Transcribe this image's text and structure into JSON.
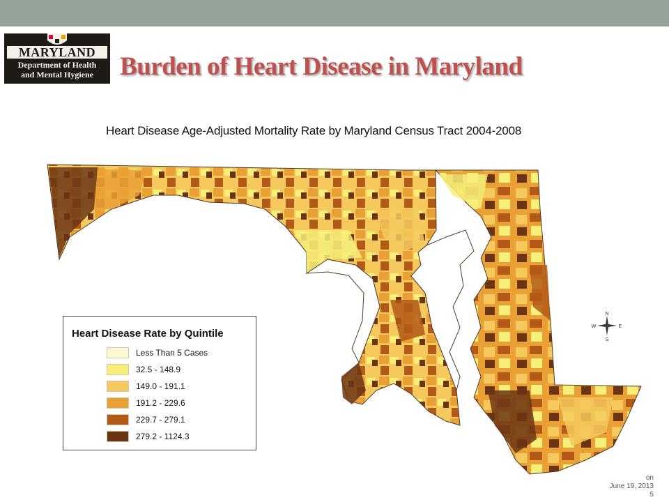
{
  "slide": {
    "title": "Burden of Heart Disease in Maryland"
  },
  "logo": {
    "name": "MARYLAND",
    "line1": "Department of Health",
    "line2": "and Mental Hygiene"
  },
  "map": {
    "title": "Heart Disease Age-Adjusted Mortality Rate by Maryland Census Tract 2004-2008",
    "compass": {
      "n": "N",
      "s": "S",
      "e": "E",
      "w": "W"
    },
    "legend": {
      "title": "Heart Disease Rate by Quintile",
      "items": [
        {
          "label": "Less Than 5 Cases",
          "color": "#fcf8d4"
        },
        {
          "label": "32.5 - 148.9",
          "color": "#f7ef7a"
        },
        {
          "label": "149.0 - 191.1",
          "color": "#f5c95e"
        },
        {
          "label": "191.2 - 229.6",
          "color": "#e9a136"
        },
        {
          "label": "229.7 - 279.1",
          "color": "#b35a18"
        },
        {
          "label": "279.2 - 1124.3",
          "color": "#6b3514"
        }
      ]
    }
  },
  "footer": {
    "line1": "on",
    "line2": "June 19, 2013",
    "line3": "5"
  }
}
